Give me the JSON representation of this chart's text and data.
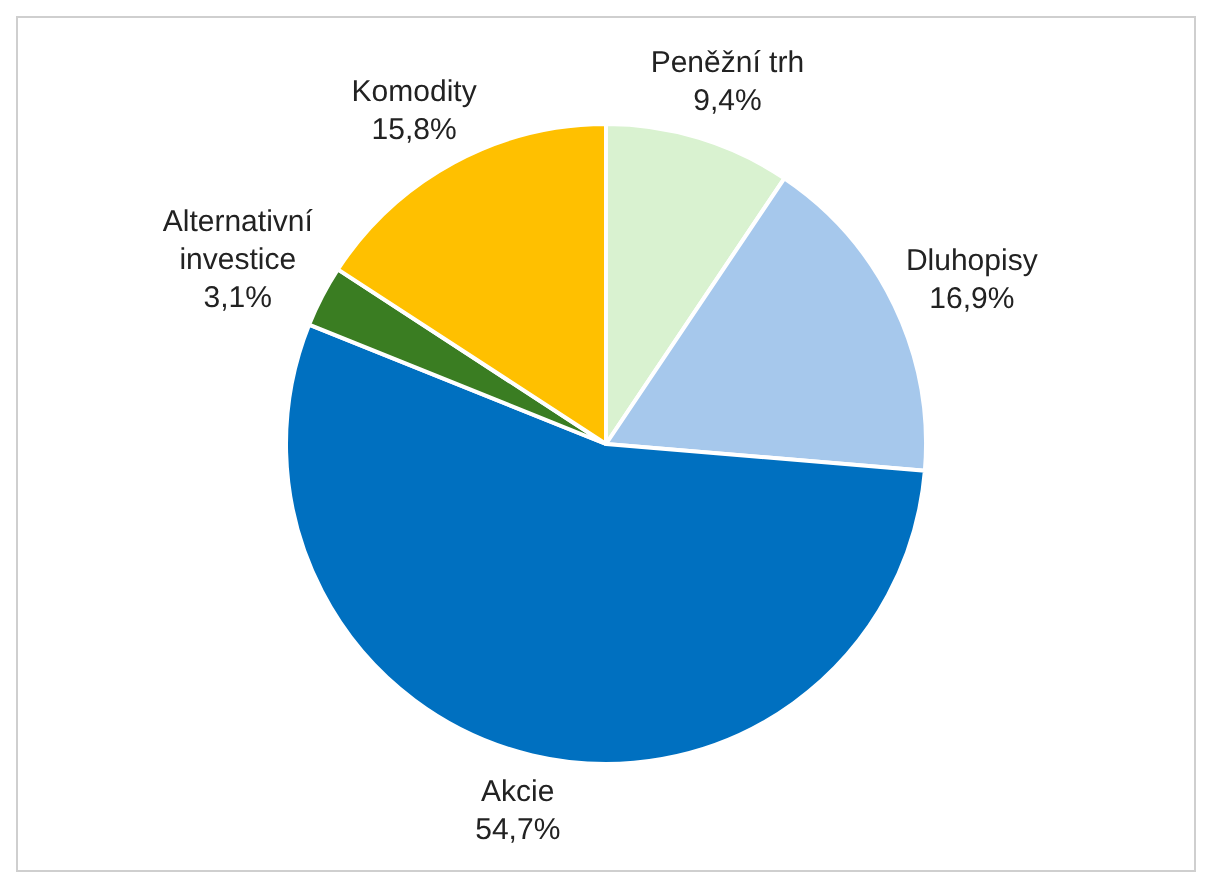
{
  "chart_data": {
    "type": "pie",
    "categories": [
      "Peněžní trh",
      "Dluhopisy",
      "Akcie",
      "Alternativní investice",
      "Komodity"
    ],
    "values": [
      9.4,
      16.9,
      54.7,
      3.1,
      15.8
    ],
    "colors": [
      "#d9f2d0",
      "#a6c8ec",
      "#0070c0",
      "#3a7d22",
      "#ffc000"
    ],
    "value_labels": [
      "9,4%",
      "16,9%",
      "54,7%",
      "3,1%",
      "15,8%"
    ],
    "legend": false
  }
}
